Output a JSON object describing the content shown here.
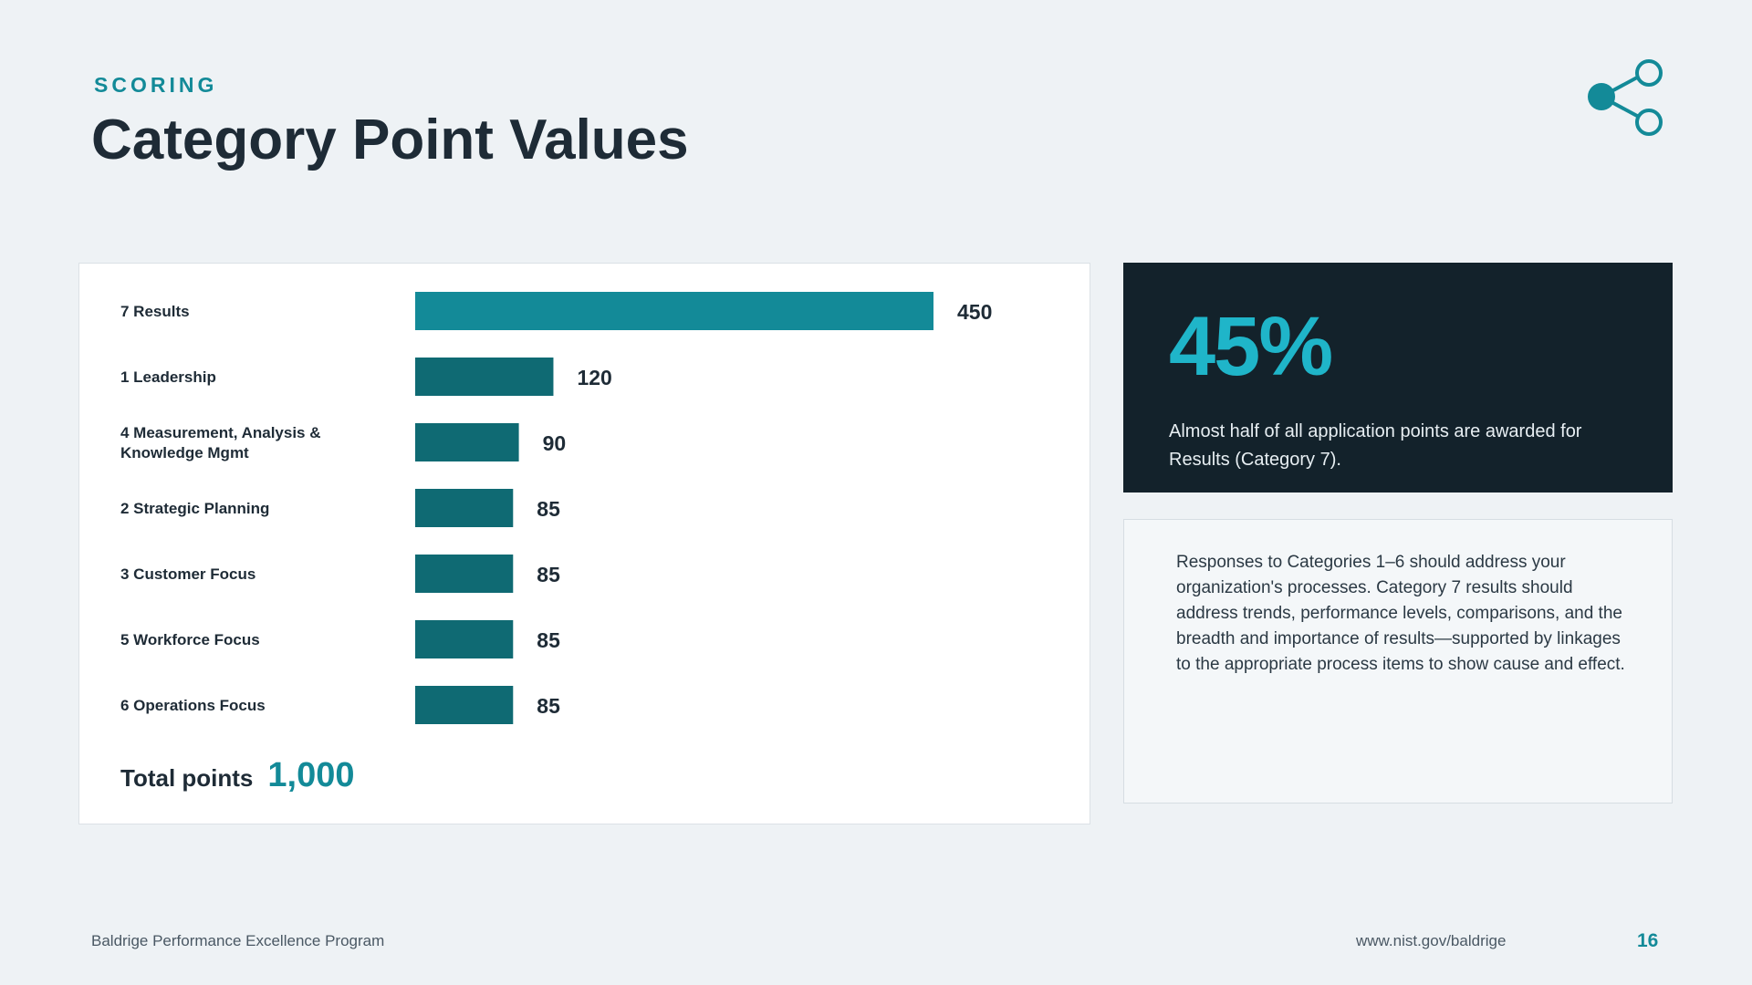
{
  "header": {
    "eyebrow": "SCORING",
    "title": "Category Point Values"
  },
  "icons": {
    "top_right": "share-network-icon"
  },
  "colors": {
    "accent": "#138a98",
    "highlight_bar": "#138a98",
    "bar": "#0f6a73",
    "dark_card": "#13222b",
    "stat_number": "#1fb5c9"
  },
  "chart_data": {
    "type": "bar",
    "orientation": "horizontal",
    "categories": [
      "7  Results",
      "1  Leadership",
      "4  Measurement, Analysis & Knowledge Mgmt",
      "2  Strategic Planning",
      "3  Customer Focus",
      "5  Workforce Focus",
      "6  Operations Focus"
    ],
    "values": [
      450,
      120,
      90,
      85,
      85,
      85,
      85
    ],
    "highlight_index": 0,
    "data_labels": true,
    "grid": false,
    "legend": false
  },
  "total": {
    "label": "Total points",
    "value": "1,000"
  },
  "stat": {
    "number": "45%",
    "text": "Almost half of all application points are awarded for Results (Category 7)."
  },
  "note": {
    "text": "Responses to Categories 1–6 should address your organization's processes. Category 7 results should address trends, performance levels, comparisons, and the breadth and importance of results—supported by linkages to the appropriate process items to show cause and effect."
  },
  "footer": {
    "program": "Baldrige Performance Excellence Program",
    "url": "www.nist.gov/baldrige",
    "page": "16"
  }
}
